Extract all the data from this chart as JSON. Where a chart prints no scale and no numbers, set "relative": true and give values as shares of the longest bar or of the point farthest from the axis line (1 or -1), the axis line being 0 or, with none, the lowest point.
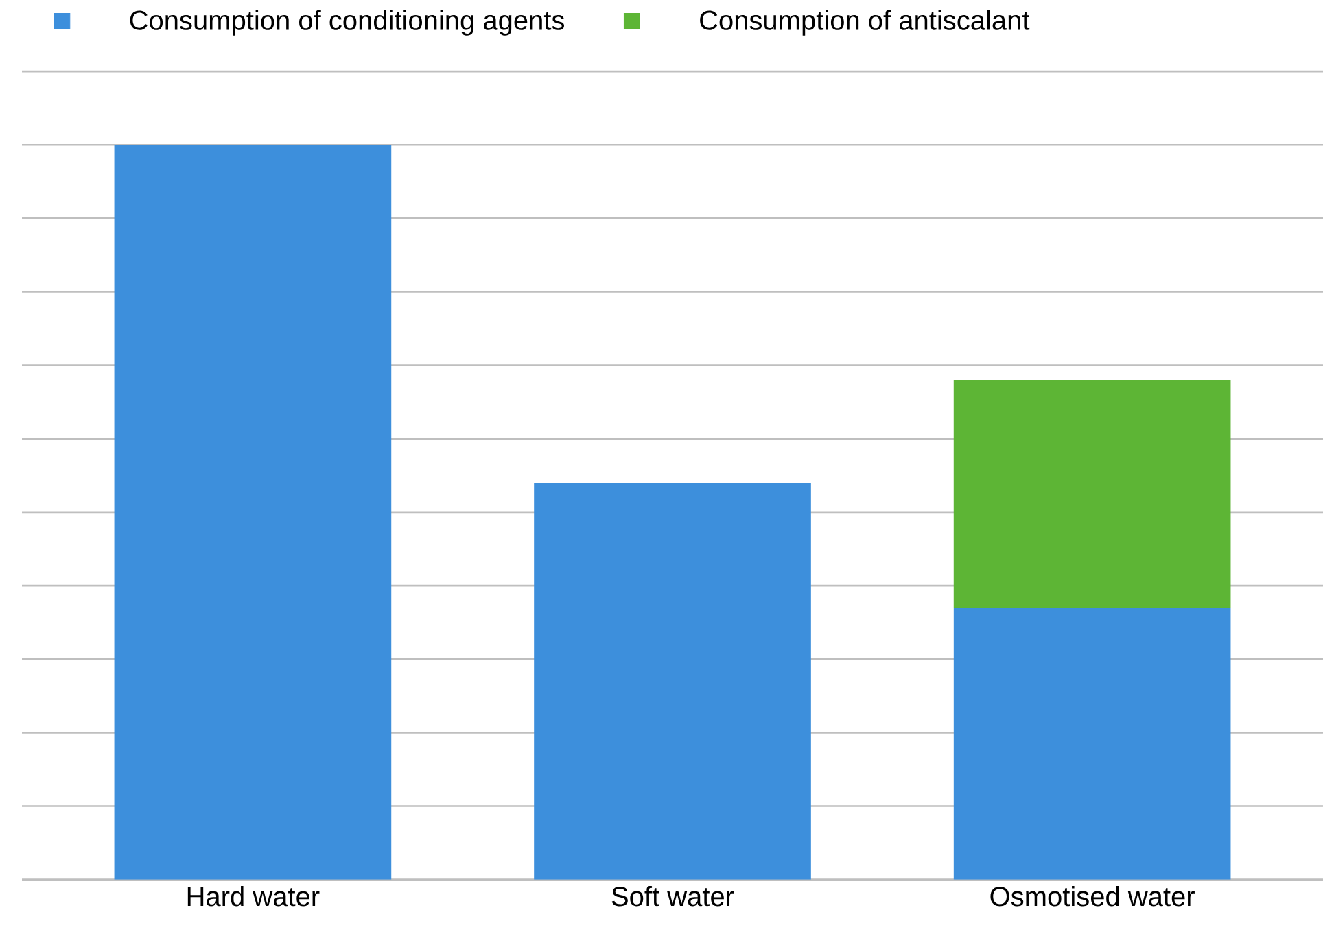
{
  "chart_data": {
    "type": "bar",
    "stacked": true,
    "relative": true,
    "grid": "y",
    "legend": "top",
    "categories": [
      "Hard water",
      "Soft water",
      "Osmotised water"
    ],
    "series": [
      {
        "name": "Consumption of conditioning agents",
        "color": "#3d8fdc",
        "values": [
          1,
          0.54,
          0.37
        ]
      },
      {
        "name": "Consumption of antiscalant",
        "color": "#5db535",
        "values": [
          null,
          null,
          0.31
        ]
      }
    ]
  }
}
